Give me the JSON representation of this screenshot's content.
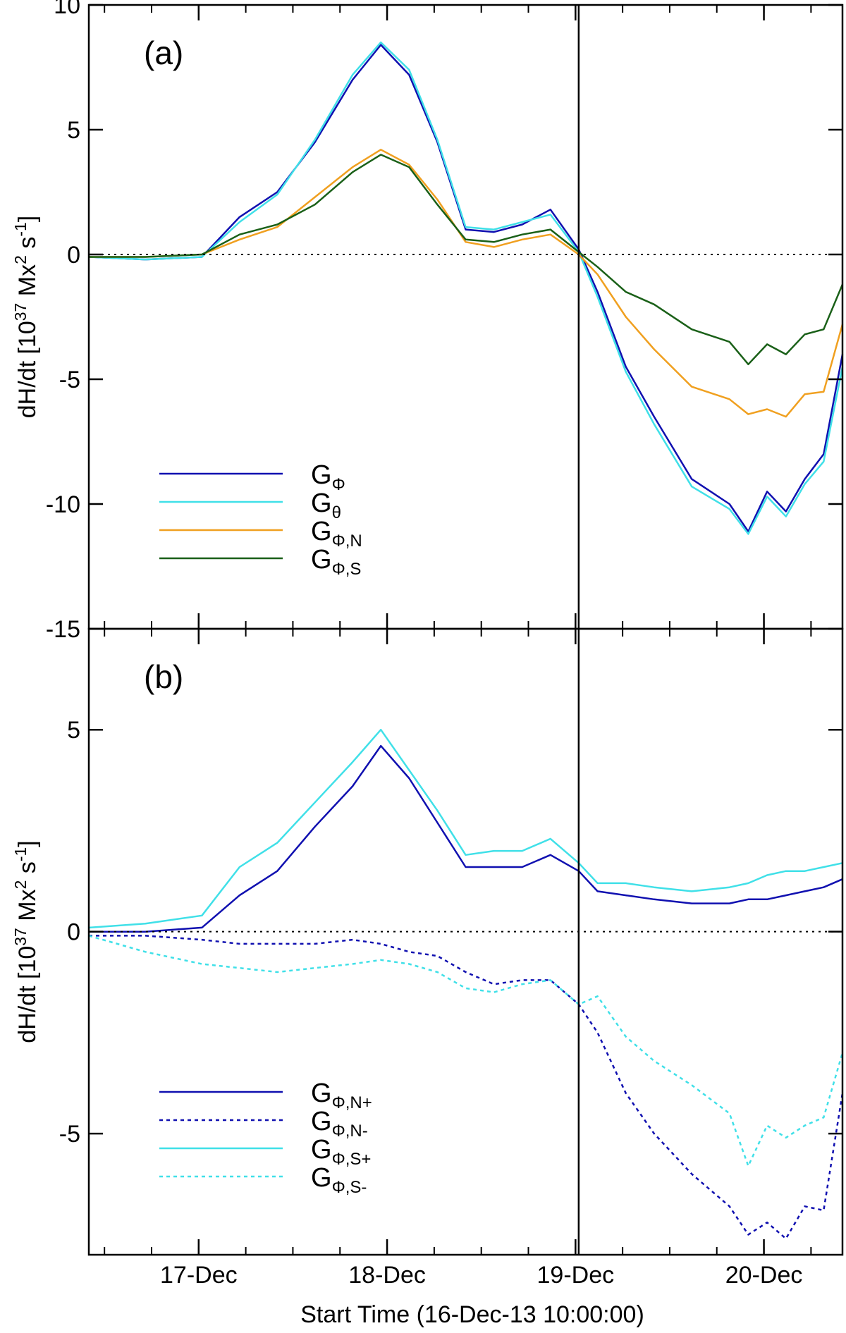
{
  "chart_data": {
    "xlabel": "Start Time (16-Dec-13 10:00:00)",
    "xticks": [
      {
        "label": "17-Dec",
        "x": 0.583
      },
      {
        "label": "18-Dec",
        "x": 1.583
      },
      {
        "label": "19-Dec",
        "x": 2.583
      },
      {
        "label": "20-Dec",
        "x": 3.583
      }
    ],
    "xlim": [
      0,
      4.0
    ],
    "vline_x": 2.6,
    "panels": [
      {
        "id": "a",
        "type": "line",
        "panel_label": "(a)",
        "ylabel": "dH/dt [10^37 Mx^2 s^-1]",
        "ylabel_parts": {
          "main": "dH/dt [10",
          "exp1": "37",
          "mid": " Mx",
          "exp2": "2",
          "mid2": " s",
          "exp3": "-1",
          "end": "]"
        },
        "ylim": [
          -15,
          10
        ],
        "yticks": [
          "10",
          "5",
          "0",
          "-5",
          "-10",
          "-15"
        ],
        "ytick_values": [
          10,
          5,
          0,
          -5,
          -10,
          -15
        ],
        "zero_line": true,
        "x": [
          0.0,
          0.3,
          0.6,
          0.8,
          1.0,
          1.2,
          1.4,
          1.55,
          1.7,
          1.85,
          2.0,
          2.15,
          2.3,
          2.45,
          2.6,
          2.7,
          2.85,
          3.0,
          3.2,
          3.4,
          3.5,
          3.6,
          3.7,
          3.8,
          3.9,
          4.0
        ],
        "series": [
          {
            "name": "GΦ",
            "legend_main": "G",
            "legend_sub": "Φ",
            "color": "#1010b0",
            "dash": false,
            "values": [
              -0.1,
              -0.2,
              -0.1,
              1.5,
              2.5,
              4.5,
              7.0,
              8.4,
              7.2,
              4.5,
              1.0,
              0.9,
              1.2,
              1.8,
              0.2,
              -1.5,
              -4.5,
              -6.5,
              -9.0,
              -10.0,
              -11.1,
              -9.5,
              -10.3,
              -9.0,
              -8.0,
              -4.0
            ]
          },
          {
            "name": "Gθ",
            "legend_main": "G",
            "legend_sub": "θ",
            "color": "#40e0e8",
            "dash": false,
            "values": [
              -0.1,
              -0.2,
              -0.1,
              1.3,
              2.4,
              4.6,
              7.2,
              8.5,
              7.4,
              4.6,
              1.1,
              1.0,
              1.3,
              1.6,
              0.1,
              -1.7,
              -4.7,
              -6.8,
              -9.3,
              -10.2,
              -11.2,
              -9.7,
              -10.5,
              -9.2,
              -8.3,
              -4.5
            ]
          },
          {
            "name": "GΦ,N",
            "legend_main": "G",
            "legend_sub": "Φ,N",
            "color": "#f0a020",
            "dash": false,
            "values": [
              -0.1,
              -0.1,
              0.0,
              0.6,
              1.1,
              2.3,
              3.5,
              4.2,
              3.6,
              2.2,
              0.5,
              0.3,
              0.6,
              0.8,
              0.0,
              -0.8,
              -2.5,
              -3.8,
              -5.3,
              -5.8,
              -6.4,
              -6.2,
              -6.5,
              -5.6,
              -5.5,
              -2.8
            ]
          },
          {
            "name": "GΦ,S",
            "legend_main": "G",
            "legend_sub": "Φ,S",
            "color": "#1a6018",
            "dash": false,
            "values": [
              -0.1,
              -0.1,
              0.0,
              0.8,
              1.2,
              2.0,
              3.3,
              4.0,
              3.5,
              2.0,
              0.6,
              0.5,
              0.8,
              1.0,
              0.1,
              -0.5,
              -1.5,
              -2.0,
              -3.0,
              -3.5,
              -4.4,
              -3.6,
              -4.0,
              -3.2,
              -3.0,
              -1.2
            ]
          }
        ]
      },
      {
        "id": "b",
        "type": "line",
        "panel_label": "(b)",
        "ylabel": "dH/dt [10^37 Mx^2 s^-1]",
        "ylabel_parts": {
          "main": "dH/dt [10",
          "exp1": "37",
          "mid": " Mx",
          "exp2": "2",
          "mid2": " s",
          "exp3": "-1",
          "end": "]"
        },
        "ylim": [
          -8,
          7.5
        ],
        "yticks": [
          "5",
          "0",
          "-5"
        ],
        "ytick_values": [
          5,
          0,
          -5
        ],
        "zero_line": true,
        "x": [
          0.0,
          0.3,
          0.6,
          0.8,
          1.0,
          1.2,
          1.4,
          1.55,
          1.7,
          1.85,
          2.0,
          2.15,
          2.3,
          2.45,
          2.6,
          2.7,
          2.85,
          3.0,
          3.2,
          3.4,
          3.5,
          3.6,
          3.7,
          3.8,
          3.9,
          4.0
        ],
        "series": [
          {
            "name": "GΦ,N+",
            "legend_main": "G",
            "legend_sub": "Φ,N+",
            "color": "#1010b0",
            "dash": false,
            "values": [
              0.0,
              0.0,
              0.1,
              0.9,
              1.5,
              2.6,
              3.6,
              4.6,
              3.8,
              2.7,
              1.6,
              1.6,
              1.6,
              1.9,
              1.5,
              1.0,
              0.9,
              0.8,
              0.7,
              0.7,
              0.8,
              0.8,
              0.9,
              1.0,
              1.1,
              1.3
            ]
          },
          {
            "name": "GΦ,N-",
            "legend_main": "G",
            "legend_sub": "Φ,N-",
            "color": "#1010b0",
            "dash": true,
            "values": [
              -0.1,
              -0.1,
              -0.2,
              -0.3,
              -0.3,
              -0.3,
              -0.2,
              -0.3,
              -0.5,
              -0.6,
              -1.0,
              -1.3,
              -1.2,
              -1.2,
              -1.8,
              -2.5,
              -4.0,
              -5.0,
              -6.0,
              -6.8,
              -7.5,
              -7.2,
              -7.6,
              -6.8,
              -6.9,
              -4.0
            ]
          },
          {
            "name": "GΦ,S+",
            "legend_main": "G",
            "legend_sub": "Φ,S+",
            "color": "#40e0e8",
            "dash": false,
            "values": [
              0.1,
              0.2,
              0.4,
              1.6,
              2.2,
              3.2,
              4.2,
              5.0,
              4.0,
              3.0,
              1.9,
              2.0,
              2.0,
              2.3,
              1.7,
              1.2,
              1.2,
              1.1,
              1.0,
              1.1,
              1.2,
              1.4,
              1.5,
              1.5,
              1.6,
              1.7
            ]
          },
          {
            "name": "GΦ,S-",
            "legend_main": "G",
            "legend_sub": "Φ,S-",
            "color": "#40e0e8",
            "dash": true,
            "values": [
              -0.1,
              -0.5,
              -0.8,
              -0.9,
              -1.0,
              -0.9,
              -0.8,
              -0.7,
              -0.8,
              -1.0,
              -1.4,
              -1.5,
              -1.3,
              -1.2,
              -1.8,
              -1.6,
              -2.6,
              -3.2,
              -3.8,
              -4.5,
              -5.8,
              -4.8,
              -5.1,
              -4.8,
              -4.6,
              -3.0
            ]
          }
        ]
      }
    ]
  }
}
